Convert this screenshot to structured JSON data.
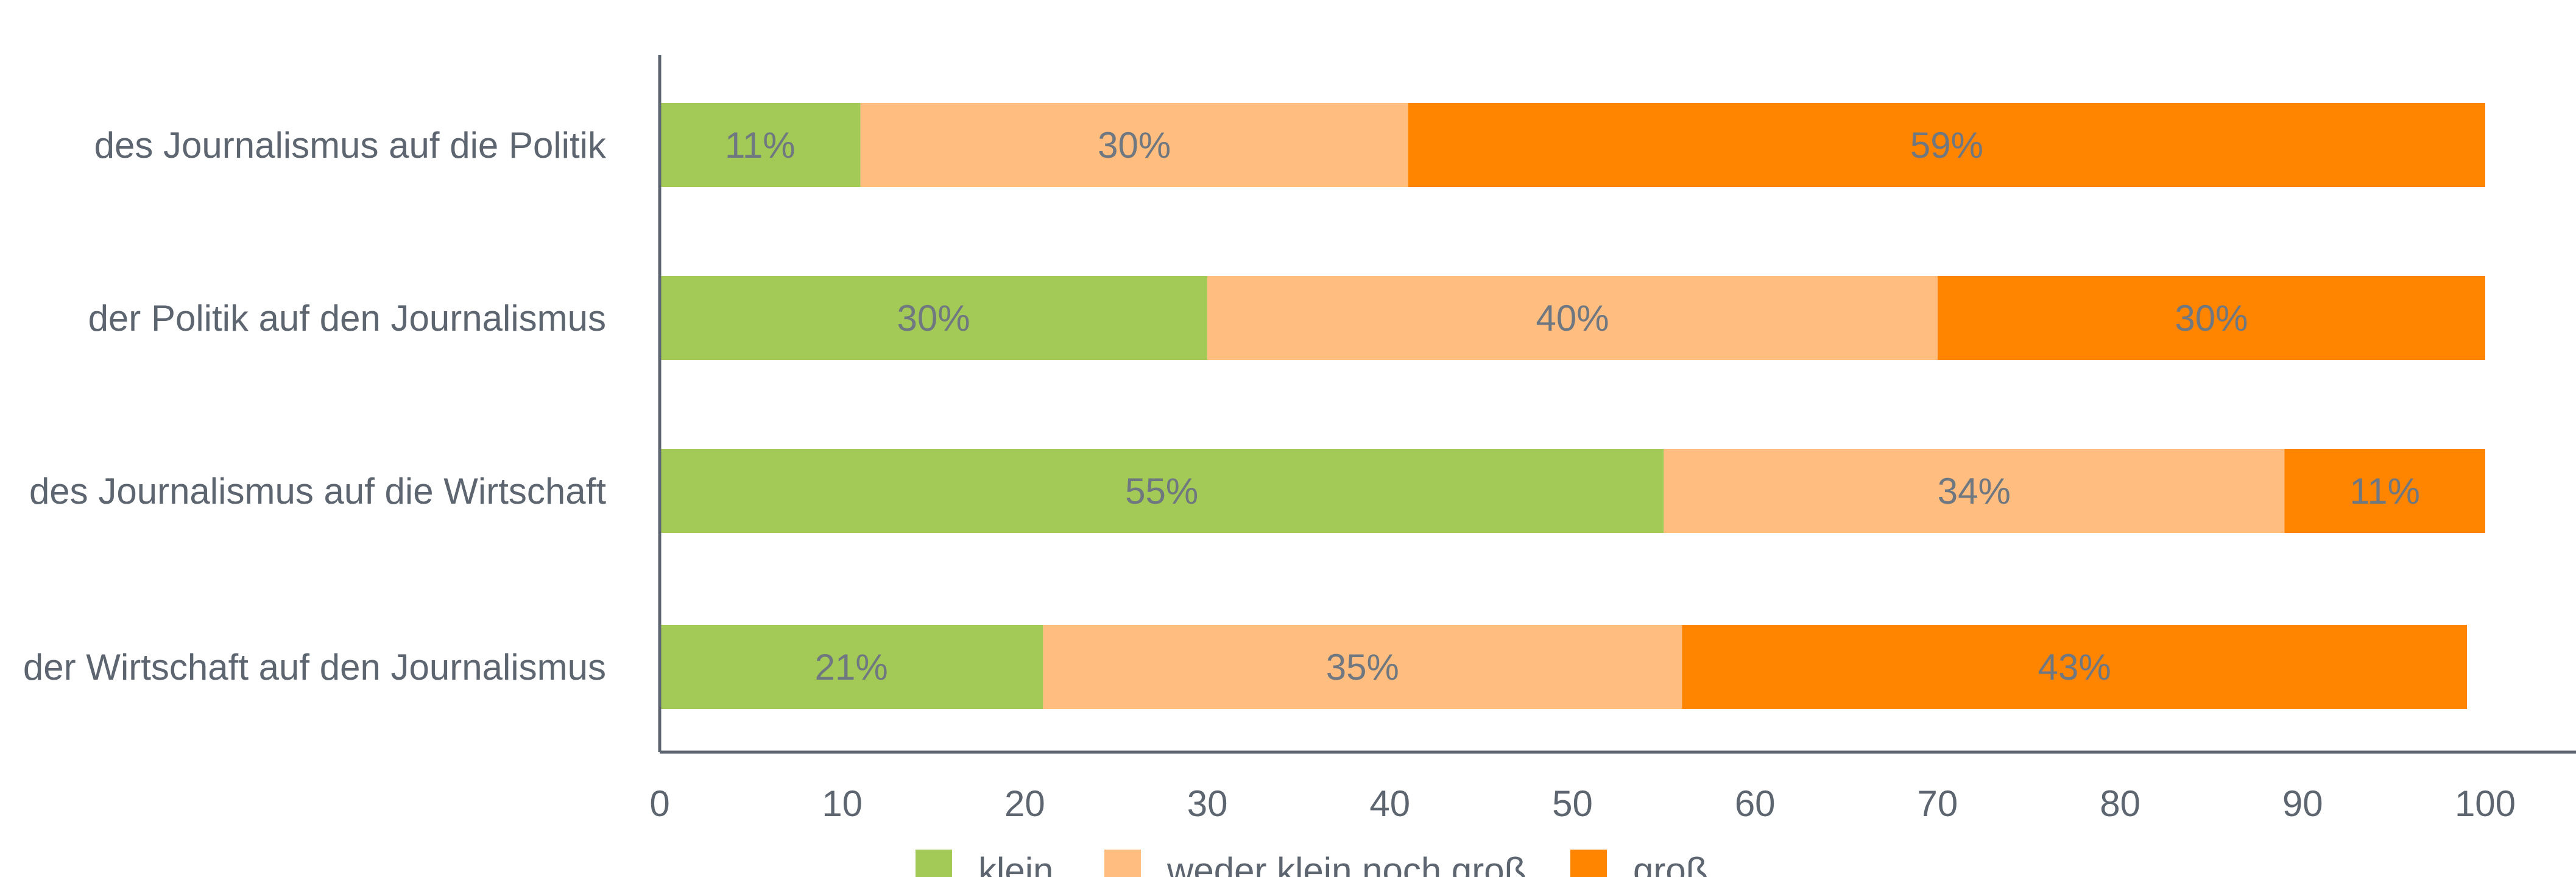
{
  "chart_data": {
    "type": "bar",
    "orientation": "horizontal",
    "stacked": true,
    "categories": [
      "des Journalismus auf die Politik",
      "der Politik auf den Journalismus",
      "des Journalismus auf die Wirtschaft",
      "der Wirtschaft auf den Journalismus"
    ],
    "series": [
      {
        "name": "klein",
        "color": "#a3c957",
        "values": [
          11,
          30,
          55,
          21
        ]
      },
      {
        "name": "weder klein noch groß",
        "color": "#ffbe80",
        "values": [
          30,
          40,
          34,
          35
        ]
      },
      {
        "name": "groß",
        "color": "#ff8500",
        "values": [
          59,
          30,
          11,
          43
        ]
      }
    ],
    "value_suffix": "%",
    "xlim": [
      0,
      100
    ],
    "xticks": [
      0,
      10,
      20,
      30,
      40,
      50,
      60,
      70,
      80,
      90,
      100
    ],
    "grid": false,
    "legend_position": "bottom"
  }
}
